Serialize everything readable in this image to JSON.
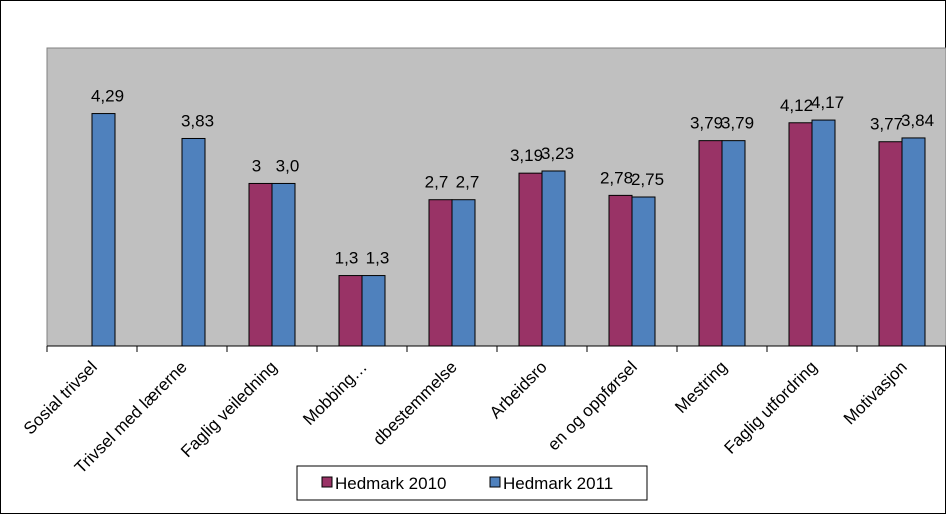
{
  "chart_data": {
    "type": "bar",
    "categories": [
      "Sosial trivsel",
      "Trivsel med lærerne",
      "Faglig veiledning",
      "Mobbing…",
      "dbestemmelse",
      "Arbeidsro",
      "en og oppførsel",
      "Mestring",
      "Faglig utfordring",
      "Motivasjon"
    ],
    "series": [
      {
        "name": "Hedmark 2010",
        "color": "#993366",
        "values": [
          null,
          null,
          3,
          1.3,
          2.7,
          3.19,
          2.78,
          3.79,
          4.12,
          3.77
        ],
        "value_labels": [
          null,
          null,
          "3",
          "1,3",
          "2,7",
          "3,19",
          "2,78",
          "3,79",
          "4,12",
          "3,77"
        ]
      },
      {
        "name": "Hedmark 2011",
        "color": "#4f81bd",
        "values": [
          4.29,
          3.83,
          3.0,
          1.3,
          2.7,
          3.23,
          2.75,
          3.79,
          4.17,
          3.84
        ],
        "value_labels": [
          "4,29",
          "3,83",
          "3,0",
          "1,3",
          "2,7",
          "3,23",
          "2,75",
          "3,79",
          "4,17",
          "3,84"
        ]
      }
    ],
    "ylim": [
      0,
      5.5
    ],
    "grid": false,
    "legend": "bottom"
  }
}
